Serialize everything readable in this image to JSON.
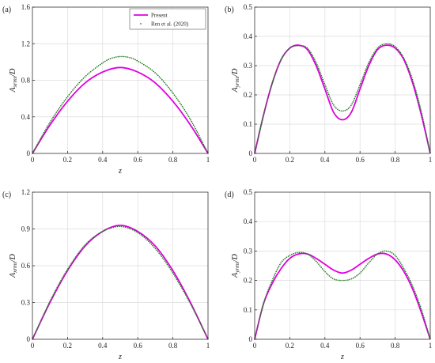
{
  "colors": {
    "present": "#e000e0",
    "reference": "#1f7a1f",
    "grid": "#dcdcdc",
    "axis": "#333333"
  },
  "legend": {
    "present": "Present",
    "reference": "Ren et al. (2020)",
    "placement": "top-right of panel (a)"
  },
  "chart_data": [
    {
      "type": "line",
      "panel": "(a)",
      "xlabel": "z",
      "ylabel": {
        "main": "A",
        "sub": "xrms",
        "tail": "/D"
      },
      "xlim": [
        0,
        1
      ],
      "ylim": [
        0,
        1.6
      ],
      "xticks": [
        0,
        0.2,
        0.4,
        0.6,
        0.8,
        1
      ],
      "yticks": [
        0,
        0.4,
        0.8,
        1.2,
        1.6
      ],
      "xtick_labels": [
        "0",
        "0.2",
        "0.4",
        "0.6",
        "0.8",
        "1"
      ],
      "ytick_labels": [
        "0",
        "0.4",
        "0.8",
        "1.2",
        "1.6"
      ],
      "grid": true,
      "legend": true,
      "series": [
        {
          "name": "Present",
          "style": "solid",
          "x": [
            0,
            0.1,
            0.2,
            0.3,
            0.4,
            0.5,
            0.6,
            0.7,
            0.8,
            0.9,
            1
          ],
          "y": [
            0,
            0.31,
            0.57,
            0.77,
            0.89,
            0.94,
            0.89,
            0.77,
            0.57,
            0.31,
            0
          ]
        },
        {
          "name": "Ren et al. (2020)",
          "style": "dotted",
          "x": [
            0,
            0.1,
            0.2,
            0.3,
            0.4,
            0.45,
            0.5,
            0.55,
            0.6,
            0.7,
            0.8,
            0.9,
            1
          ],
          "y": [
            0,
            0.34,
            0.62,
            0.84,
            0.99,
            1.04,
            1.06,
            1.05,
            1.01,
            0.88,
            0.66,
            0.37,
            0
          ]
        }
      ]
    },
    {
      "type": "line",
      "panel": "(b)",
      "xlabel": "",
      "ylabel": {
        "main": "A",
        "sub": "yrms",
        "tail": "/D"
      },
      "xlim": [
        0,
        1
      ],
      "ylim": [
        0,
        0.5
      ],
      "xticks": [
        0,
        0.2,
        0.4,
        0.6,
        0.8,
        1
      ],
      "yticks": [
        0,
        0.1,
        0.2,
        0.3,
        0.4,
        0.5
      ],
      "xtick_labels": [
        "0",
        "0.2",
        "0.4",
        "0.6",
        "0.8",
        "1"
      ],
      "ytick_labels": [
        "0",
        "0.1",
        "0.2",
        "0.3",
        "0.4",
        "0.5"
      ],
      "grid": true,
      "legend": false,
      "series": [
        {
          "name": "Present",
          "style": "solid",
          "x": [
            0,
            0.05,
            0.1,
            0.15,
            0.2,
            0.25,
            0.3,
            0.35,
            0.4,
            0.45,
            0.5,
            0.55,
            0.6,
            0.65,
            0.7,
            0.75,
            0.8,
            0.85,
            0.9,
            0.95,
            1
          ],
          "y": [
            0,
            0.13,
            0.24,
            0.32,
            0.36,
            0.37,
            0.355,
            0.3,
            0.22,
            0.14,
            0.115,
            0.14,
            0.22,
            0.3,
            0.355,
            0.37,
            0.36,
            0.32,
            0.24,
            0.13,
            0
          ]
        },
        {
          "name": "Ren et al. (2020)",
          "style": "dotted",
          "x": [
            0,
            0.05,
            0.1,
            0.15,
            0.2,
            0.25,
            0.3,
            0.35,
            0.4,
            0.45,
            0.5,
            0.55,
            0.6,
            0.65,
            0.7,
            0.75,
            0.8,
            0.85,
            0.9,
            0.95,
            1
          ],
          "y": [
            0,
            0.13,
            0.24,
            0.32,
            0.36,
            0.368,
            0.36,
            0.31,
            0.235,
            0.165,
            0.145,
            0.165,
            0.235,
            0.31,
            0.36,
            0.375,
            0.365,
            0.325,
            0.25,
            0.14,
            0
          ]
        }
      ]
    },
    {
      "type": "line",
      "panel": "(c)",
      "xlabel": "z",
      "ylabel": {
        "main": "A",
        "sub": "xrms",
        "tail": "/D"
      },
      "xlim": [
        0,
        1
      ],
      "ylim": [
        0,
        1.2
      ],
      "xticks": [
        0,
        0.2,
        0.4,
        0.6,
        0.8,
        1
      ],
      "yticks": [
        0,
        0.3,
        0.6,
        0.9,
        1.2
      ],
      "xtick_labels": [
        "0",
        "0.2",
        "0.4",
        "0.6",
        "0.8",
        "1"
      ],
      "ytick_labels": [
        "0",
        "0.3",
        "0.6",
        "0.9",
        "1.2"
      ],
      "grid": true,
      "legend": false,
      "series": [
        {
          "name": "Present",
          "style": "solid",
          "x": [
            0,
            0.1,
            0.2,
            0.3,
            0.4,
            0.5,
            0.6,
            0.7,
            0.8,
            0.9,
            1
          ],
          "y": [
            0,
            0.3,
            0.56,
            0.76,
            0.88,
            0.93,
            0.88,
            0.76,
            0.56,
            0.3,
            0
          ]
        },
        {
          "name": "Ren et al. (2020)",
          "style": "dotted",
          "x": [
            0,
            0.1,
            0.2,
            0.3,
            0.4,
            0.5,
            0.6,
            0.7,
            0.8,
            0.9,
            1
          ],
          "y": [
            0,
            0.31,
            0.57,
            0.77,
            0.88,
            0.92,
            0.87,
            0.74,
            0.54,
            0.29,
            0
          ]
        }
      ]
    },
    {
      "type": "line",
      "panel": "(d)",
      "xlabel": "z",
      "ylabel": {
        "main": "A",
        "sub": "yrms",
        "tail": "/D"
      },
      "xlim": [
        0,
        1
      ],
      "ylim": [
        0,
        0.5
      ],
      "xticks": [
        0,
        0.2,
        0.4,
        0.6,
        0.8,
        1
      ],
      "yticks": [
        0,
        0.1,
        0.2,
        0.3,
        0.4,
        0.5
      ],
      "xtick_labels": [
        "0",
        "0.2",
        "0.4",
        "0.6",
        "0.8",
        "1"
      ],
      "ytick_labels": [
        "0",
        "0.1",
        "0.2",
        "0.3",
        "0.4",
        "0.5"
      ],
      "grid": true,
      "legend": false,
      "series": [
        {
          "name": "Present",
          "style": "solid",
          "x": [
            0,
            0.05,
            0.1,
            0.15,
            0.2,
            0.25,
            0.3,
            0.35,
            0.4,
            0.45,
            0.5,
            0.55,
            0.6,
            0.65,
            0.7,
            0.75,
            0.8,
            0.85,
            0.9,
            0.95,
            1
          ],
          "y": [
            0,
            0.12,
            0.19,
            0.24,
            0.275,
            0.29,
            0.29,
            0.275,
            0.255,
            0.235,
            0.225,
            0.235,
            0.255,
            0.275,
            0.29,
            0.29,
            0.27,
            0.23,
            0.17,
            0.09,
            0
          ]
        },
        {
          "name": "Ren et al. (2020)",
          "style": "dotted",
          "x": [
            0,
            0.05,
            0.1,
            0.15,
            0.2,
            0.25,
            0.3,
            0.35,
            0.4,
            0.45,
            0.5,
            0.55,
            0.6,
            0.65,
            0.7,
            0.75,
            0.8,
            0.85,
            0.9,
            0.95,
            1
          ],
          "y": [
            0,
            0.12,
            0.2,
            0.26,
            0.285,
            0.295,
            0.29,
            0.265,
            0.23,
            0.205,
            0.2,
            0.205,
            0.225,
            0.26,
            0.29,
            0.3,
            0.285,
            0.24,
            0.18,
            0.1,
            0
          ]
        }
      ]
    }
  ]
}
